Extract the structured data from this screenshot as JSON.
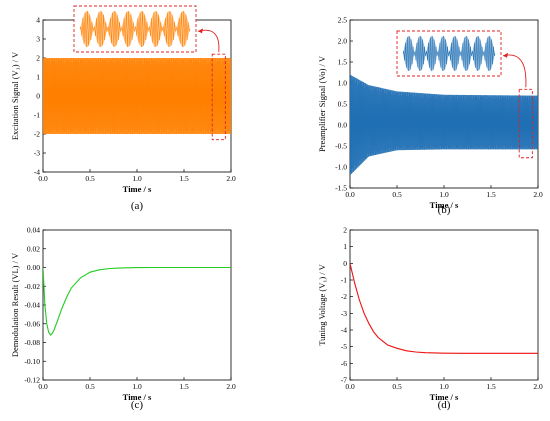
{
  "chart_data": [
    {
      "id": "a",
      "type": "line",
      "panel_label": "(a)",
      "xlabel": "Time / s",
      "ylabel": "Excitation Signal (V₁) / V",
      "xlim": [
        0.0,
        2.0
      ],
      "ylim": [
        -4,
        4
      ],
      "xticks": [
        "0.0",
        "0.5",
        "1.0",
        "1.5",
        "2.0"
      ],
      "yticks": [
        "-4",
        "-3",
        "-2",
        "-1",
        "0",
        "1",
        "2",
        "3",
        "4"
      ],
      "series": [
        {
          "color": "#ff8000",
          "envelope": [
            [
              0.0,
              2.0
            ],
            [
              2.0,
              2.0
            ]
          ],
          "lower_envelope": [
            [
              0.0,
              -2.0
            ],
            [
              2.0,
              -2.0
            ]
          ],
          "style": "dense oscillation"
        }
      ],
      "inset": {
        "highlight_x": [
          1.8,
          1.94
        ],
        "highlight_y": [
          -2.3,
          2.2
        ],
        "color": "#ff8000",
        "cycles": 8,
        "box_color": "#e02020"
      }
    },
    {
      "id": "b",
      "type": "line",
      "panel_label": "(b)",
      "xlabel": "Time / s",
      "ylabel": "Preamplifier Signal (Vo) / V",
      "xlim": [
        0.0,
        2.0
      ],
      "ylim": [
        -1.5,
        2.5
      ],
      "xticks": [
        "0.0",
        "0.5",
        "1.0",
        "1.5",
        "2.0"
      ],
      "yticks": [
        "-1.5",
        "-1.0",
        "-0.5",
        "0.0",
        "0.5",
        "1.0",
        "1.5",
        "2.0",
        "2.5"
      ],
      "series": [
        {
          "color": "#1f6fb4",
          "envelope": [
            [
              0.0,
              1.2
            ],
            [
              0.2,
              0.95
            ],
            [
              0.5,
              0.8
            ],
            [
              1.0,
              0.72
            ],
            [
              2.0,
              0.7
            ]
          ],
          "lower_envelope": [
            [
              0.0,
              -1.2
            ],
            [
              0.2,
              -0.75
            ],
            [
              0.5,
              -0.6
            ],
            [
              1.0,
              -0.58
            ],
            [
              2.0,
              -0.58
            ]
          ],
          "style": "dense oscillation"
        }
      ],
      "inset": {
        "highlight_x": [
          1.8,
          1.94
        ],
        "highlight_y": [
          -0.78,
          0.85
        ],
        "color": "#1f6fb4",
        "cycles": 8,
        "box_color": "#e02020"
      }
    },
    {
      "id": "c",
      "type": "line",
      "panel_label": "(c)",
      "xlabel": "Time / s",
      "ylabel": "Demodulation Result (VL) / V",
      "xlim": [
        0.0,
        2.0
      ],
      "ylim": [
        -0.12,
        0.04
      ],
      "xticks": [
        "0.0",
        "0.5",
        "1.0",
        "1.5",
        "2.0"
      ],
      "yticks": [
        "-0.12",
        "-0.10",
        "-0.08",
        "-0.06",
        "-0.04",
        "-0.02",
        "0.00",
        "0.02",
        "0.04"
      ],
      "series": [
        {
          "color": "#22cc22",
          "x": [
            0.0,
            0.02,
            0.04,
            0.06,
            0.08,
            0.1,
            0.12,
            0.15,
            0.2,
            0.25,
            0.3,
            0.4,
            0.5,
            0.6,
            0.7,
            0.8,
            0.9,
            1.0,
            1.2,
            1.5,
            2.0
          ],
          "y": [
            0.0,
            -0.04,
            -0.06,
            -0.069,
            -0.072,
            -0.07,
            -0.066,
            -0.058,
            -0.044,
            -0.032,
            -0.022,
            -0.011,
            -0.005,
            -0.0025,
            -0.0012,
            -0.0006,
            -0.0003,
            -0.0001,
            0.0,
            0.0,
            0.0
          ]
        }
      ]
    },
    {
      "id": "d",
      "type": "line",
      "panel_label": "(d)",
      "xlabel": "Time / s",
      "ylabel": "Tuning Voltage (V₁) / V",
      "xlim": [
        0.0,
        2.0
      ],
      "ylim": [
        -7,
        2
      ],
      "xticks": [
        "0.0",
        "0.5",
        "1.0",
        "1.5",
        "2.0"
      ],
      "yticks": [
        "-7",
        "-6",
        "-5",
        "-4",
        "-3",
        "-2",
        "-1",
        "0",
        "1",
        "2"
      ],
      "series": [
        {
          "color": "#ee1111",
          "x": [
            0.0,
            0.05,
            0.1,
            0.15,
            0.2,
            0.25,
            0.3,
            0.4,
            0.5,
            0.6,
            0.7,
            0.8,
            1.0,
            1.2,
            1.5,
            2.0
          ],
          "y": [
            0.0,
            -1.2,
            -2.2,
            -3.0,
            -3.6,
            -4.1,
            -4.45,
            -4.9,
            -5.1,
            -5.25,
            -5.32,
            -5.36,
            -5.39,
            -5.4,
            -5.4,
            -5.4
          ]
        }
      ]
    }
  ]
}
